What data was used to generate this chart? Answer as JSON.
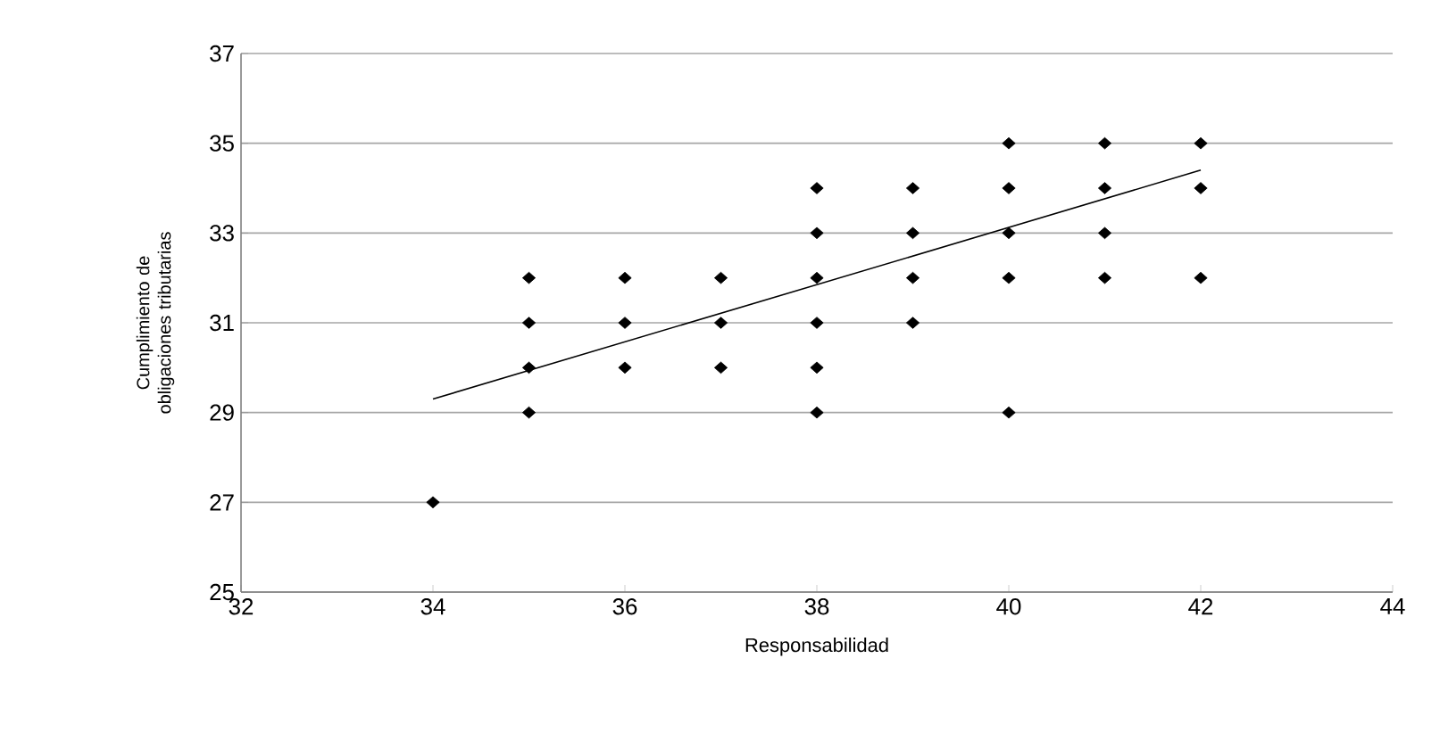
{
  "chart_data": {
    "type": "scatter",
    "xlabel": "Responsabilidad",
    "ylabel": "Cumplimiento de obligaciones tributarias",
    "xlim": [
      32,
      44
    ],
    "xticks": [
      32,
      34,
      36,
      38,
      40,
      42,
      44
    ],
    "ylim": [
      25,
      37
    ],
    "yticks": [
      25,
      27,
      29,
      31,
      33,
      35,
      37
    ],
    "grid": "y",
    "marker": "diamond",
    "series": [
      {
        "color": "#000000",
        "x": [
          34,
          35,
          35,
          35,
          35,
          36,
          36,
          36,
          37,
          37,
          37,
          38,
          38,
          38,
          38,
          38,
          38,
          39,
          39,
          39,
          39,
          40,
          40,
          40,
          40,
          40,
          41,
          41,
          41,
          41,
          42,
          42,
          42
        ],
        "values": [
          27,
          32,
          31,
          30,
          29,
          32,
          31,
          30,
          32,
          31,
          30,
          34,
          33,
          32,
          31,
          30,
          29,
          34,
          33,
          32,
          31,
          35,
          34,
          33,
          32,
          29,
          35,
          34,
          33,
          32,
          35,
          34,
          32
        ]
      },
      {
        "type": "line",
        "color": "#000000",
        "marker": "none",
        "x": [
          34,
          42
        ],
        "values": [
          29.3,
          34.4
        ]
      }
    ]
  }
}
